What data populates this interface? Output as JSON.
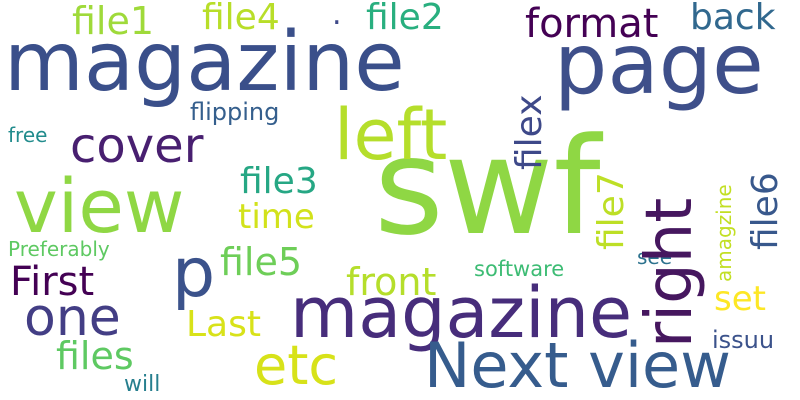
{
  "word_cloud": {
    "words": [
      {
        "text": "magazine",
        "color": "#3a4f8a"
      },
      {
        "text": "page",
        "color": "#3e4f8a"
      },
      {
        "text": "swf",
        "color": "#8fd744"
      },
      {
        "text": "view",
        "color": "#8fd744"
      },
      {
        "text": "left",
        "color": "#b5de2b"
      },
      {
        "text": "right",
        "color": "#46175f"
      },
      {
        "text": "magazine",
        "color": "#472d7b"
      },
      {
        "text": "Next view",
        "color": "#365c8d"
      },
      {
        "text": "p",
        "color": "#3b528b"
      },
      {
        "text": "one",
        "color": "#433e85"
      },
      {
        "text": "cover",
        "color": "#481f70"
      },
      {
        "text": "etc",
        "color": "#d7e219"
      },
      {
        "text": "file1",
        "color": "#9fda3a"
      },
      {
        "text": "file4",
        "color": "#b8de29"
      },
      {
        "text": "file2",
        "color": "#29af7f"
      },
      {
        "text": "format",
        "color": "#440154"
      },
      {
        "text": "back",
        "color": "#31688e"
      },
      {
        "text": "filex",
        "color": "#3e4989"
      },
      {
        "text": "file7",
        "color": "#bddf26"
      },
      {
        "text": "file6",
        "color": "#38588c"
      },
      {
        "text": "file3",
        "color": "#26a784"
      },
      {
        "text": "time",
        "color": "#d2e21b"
      },
      {
        "text": "file5",
        "color": "#6ece58"
      },
      {
        "text": "front",
        "color": "#b5de2b"
      },
      {
        "text": "First",
        "color": "#440154"
      },
      {
        "text": "Last",
        "color": "#d8e219"
      },
      {
        "text": "files",
        "color": "#5ec962"
      },
      {
        "text": "flipping",
        "color": "#355f8d"
      },
      {
        "text": "free",
        "color": "#228c8d"
      },
      {
        "text": "Preferably",
        "color": "#5ec962"
      },
      {
        "text": "software",
        "color": "#3dbc74"
      },
      {
        "text": "see",
        "color": "#2c728e"
      },
      {
        "text": "amagzine",
        "color": "#c2df23"
      },
      {
        "text": "set",
        "color": "#fde725"
      },
      {
        "text": "issuu",
        "color": "#3b528b"
      },
      {
        "text": "will",
        "color": "#277f8e"
      },
      {
        "text": ".",
        "color": "#3e4989"
      }
    ]
  }
}
